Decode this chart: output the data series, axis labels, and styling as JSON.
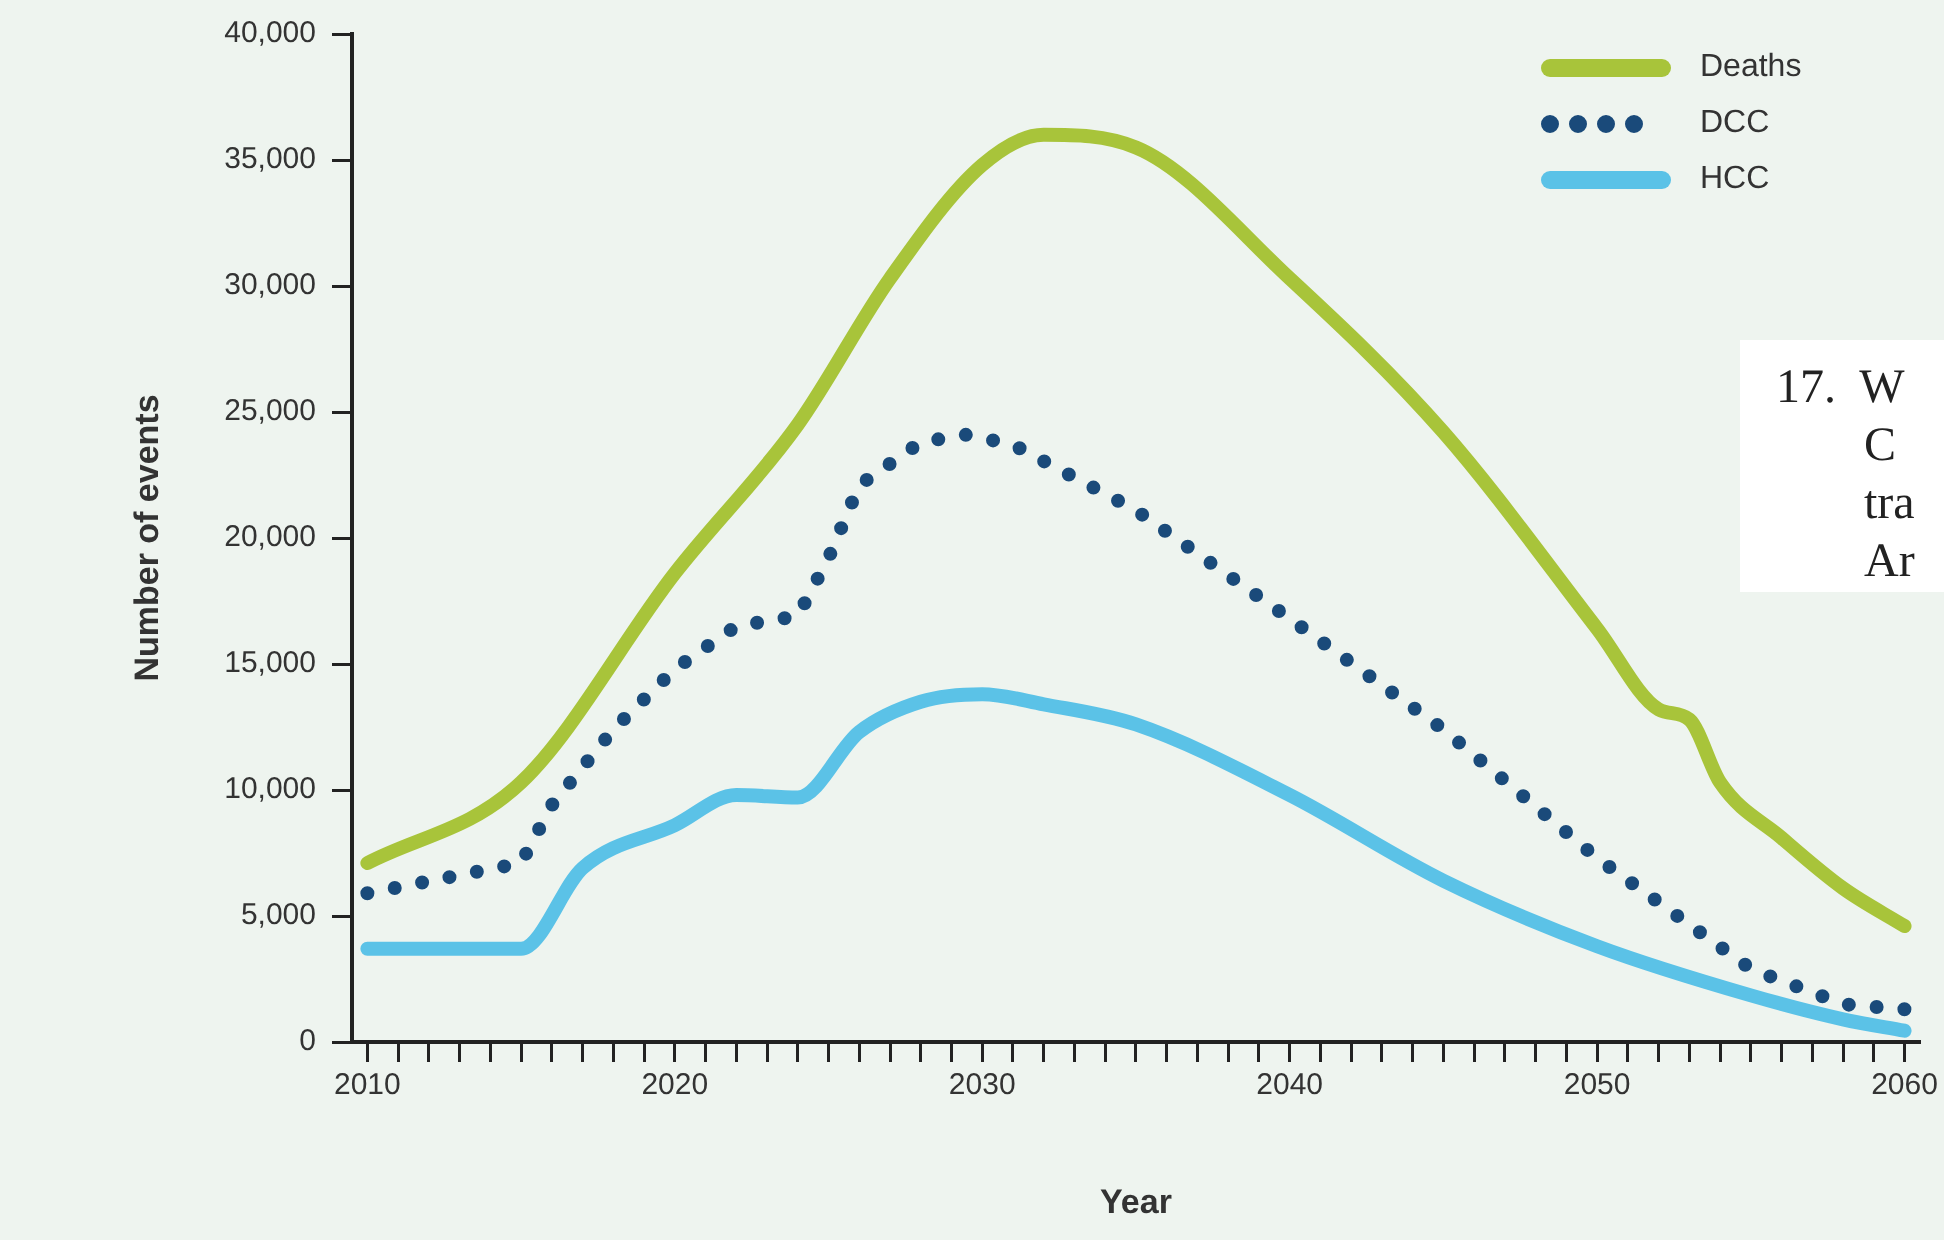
{
  "chart_data": {
    "type": "line",
    "xlabel": "Year",
    "ylabel": "Number of events",
    "xlim": [
      2009.5,
      2060.5
    ],
    "xticks": [
      2010,
      {
        "value": 2011,
        "label": null
      },
      {
        "value": 2012,
        "label": null
      },
      {
        "value": 2013,
        "label": null
      },
      {
        "value": 2014,
        "label": null
      },
      {
        "value": 2015,
        "label": null
      },
      {
        "value": 2016,
        "label": null
      },
      {
        "value": 2017,
        "label": null
      },
      {
        "value": 2018,
        "label": null
      },
      {
        "value": 2019,
        "label": null
      },
      2020,
      {
        "value": 2021,
        "label": null
      },
      {
        "value": 2022,
        "label": null
      },
      {
        "value": 2023,
        "label": null
      },
      {
        "value": 2024,
        "label": null
      },
      {
        "value": 2025,
        "label": null
      },
      {
        "value": 2026,
        "label": null
      },
      {
        "value": 2027,
        "label": null
      },
      {
        "value": 2028,
        "label": null
      },
      {
        "value": 2029,
        "label": null
      },
      2030,
      {
        "value": 2031,
        "label": null
      },
      {
        "value": 2032,
        "label": null
      },
      {
        "value": 2033,
        "label": null
      },
      {
        "value": 2034,
        "label": null
      },
      {
        "value": 2035,
        "label": null
      },
      {
        "value": 2036,
        "label": null
      },
      {
        "value": 2037,
        "label": null
      },
      {
        "value": 2038,
        "label": null
      },
      {
        "value": 2039,
        "label": null
      },
      2040,
      {
        "value": 2041,
        "label": null
      },
      {
        "value": 2042,
        "label": null
      },
      {
        "value": 2043,
        "label": null
      },
      {
        "value": 2044,
        "label": null
      },
      {
        "value": 2045,
        "label": null
      },
      {
        "value": 2046,
        "label": null
      },
      {
        "value": 2047,
        "label": null
      },
      {
        "value": 2048,
        "label": null
      },
      {
        "value": 2049,
        "label": null
      },
      2050,
      {
        "value": 2051,
        "label": null
      },
      {
        "value": 2052,
        "label": null
      },
      {
        "value": 2053,
        "label": null
      },
      {
        "value": 2054,
        "label": null
      },
      {
        "value": 2055,
        "label": null
      },
      {
        "value": 2056,
        "label": null
      },
      {
        "value": 2057,
        "label": null
      },
      {
        "value": 2058,
        "label": null
      },
      {
        "value": 2059,
        "label": null
      },
      2060
    ],
    "ylim": [
      0,
      40000
    ],
    "yticks": [
      0,
      {
        "value": 5000,
        "label": "5,000"
      },
      {
        "value": 10000,
        "label": "10,000"
      },
      {
        "value": 15000,
        "label": "15,000"
      },
      {
        "value": 20000,
        "label": "20,000"
      },
      {
        "value": 25000,
        "label": "25,000"
      },
      {
        "value": 30000,
        "label": "30,000"
      },
      {
        "value": 35000,
        "label": "35,000"
      },
      {
        "value": 40000,
        "label": "40,000"
      }
    ],
    "grid": false,
    "legend": "top right",
    "marker": "none",
    "series": [
      {
        "name": "Deaths",
        "color": "#a8c43a",
        "line_style": "solid",
        "x": [
          2010,
          2015,
          2020,
          2024,
          2027,
          2030,
          2032,
          2035,
          2040,
          2045,
          2050,
          2052,
          2053,
          2054,
          2056,
          2058,
          2060
        ],
        "values": [
          7100,
          10300,
          18600,
          24500,
          30300,
          34800,
          36000,
          35500,
          30300,
          24200,
          16400,
          13200,
          12800,
          10300,
          8100,
          6100,
          4600
        ]
      },
      {
        "name": "DCC",
        "color": "#1a4a7a",
        "line_style": "dotted",
        "x": [
          2010,
          2015,
          2016,
          2018,
          2020,
          2022,
          2024,
          2025,
          2026,
          2028,
          2029.5,
          2031,
          2035,
          2040,
          2045,
          2050,
          2055,
          2058,
          2060
        ],
        "values": [
          5900,
          7100,
          9400,
          12400,
          14800,
          16500,
          16900,
          19200,
          22100,
          23800,
          24100,
          23700,
          21100,
          16800,
          12400,
          7300,
          2900,
          1500,
          1300
        ]
      },
      {
        "name": "HCC",
        "color": "#5bc2e7",
        "line_style": "solid",
        "x": [
          2010,
          2015,
          2017,
          2020,
          2022,
          2024,
          2026,
          2028,
          2030,
          2032,
          2035,
          2040,
          2045,
          2050,
          2055,
          2058,
          2060
        ],
        "values": [
          3700,
          3700,
          6900,
          8600,
          9800,
          9700,
          12300,
          13500,
          13800,
          13400,
          12600,
          9800,
          6400,
          3800,
          1850,
          900,
          450
        ]
      }
    ],
    "annotations": [
      "17.  W",
      "C",
      "tra",
      "Ar"
    ]
  }
}
